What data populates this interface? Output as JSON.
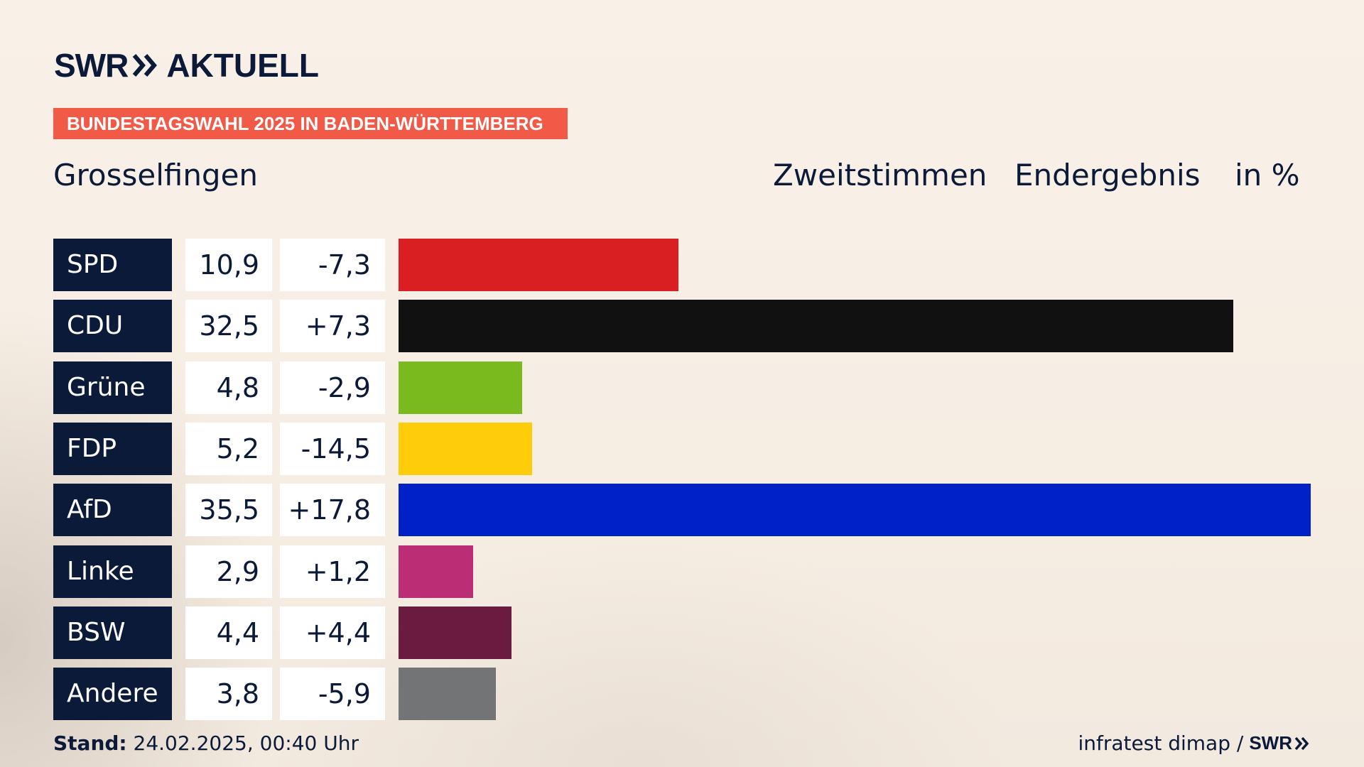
{
  "brand": {
    "swr": "SWR",
    "aktuell": "AKTUELL"
  },
  "banner": "BUNDESTAGSWAHL 2025 IN BADEN-WÜRTTEMBERG",
  "place": "Grosselfingen",
  "subtitle": {
    "vote_type": "Zweitstimmen",
    "status": "Endergebnis",
    "unit": "in %"
  },
  "chart_data": {
    "type": "bar",
    "orientation": "horizontal",
    "unit": "%",
    "categories": [
      "SPD",
      "CDU",
      "Grüne",
      "FDP",
      "AfD",
      "Linke",
      "BSW",
      "Andere"
    ],
    "values": [
      10.9,
      32.5,
      4.8,
      5.2,
      35.5,
      2.9,
      4.4,
      3.8
    ],
    "value_labels": [
      "10,9",
      "32,5",
      "4,8",
      "5,2",
      "35,5",
      "2,9",
      "4,4",
      "3,8"
    ],
    "diff_labels": [
      "-7,3",
      "+7,3",
      "-2,9",
      "-14,5",
      "+17,8",
      "+1,2",
      "+4,4",
      "-5,9"
    ],
    "diffs": [
      -7.3,
      7.3,
      -2.9,
      -14.5,
      17.8,
      1.2,
      4.4,
      -5.9
    ],
    "colors": [
      "#d91f21",
      "#111111",
      "#7aba1f",
      "#fecc0a",
      "#0020c8",
      "#bb2e75",
      "#6b1a40",
      "#737475"
    ],
    "xlim": [
      0,
      35.5
    ]
  },
  "footer": {
    "stand_label": "Stand:",
    "stand_value": " 24.02.2025, 00:40 Uhr",
    "source": "infratest dimap /",
    "source_brand": "SWR"
  }
}
